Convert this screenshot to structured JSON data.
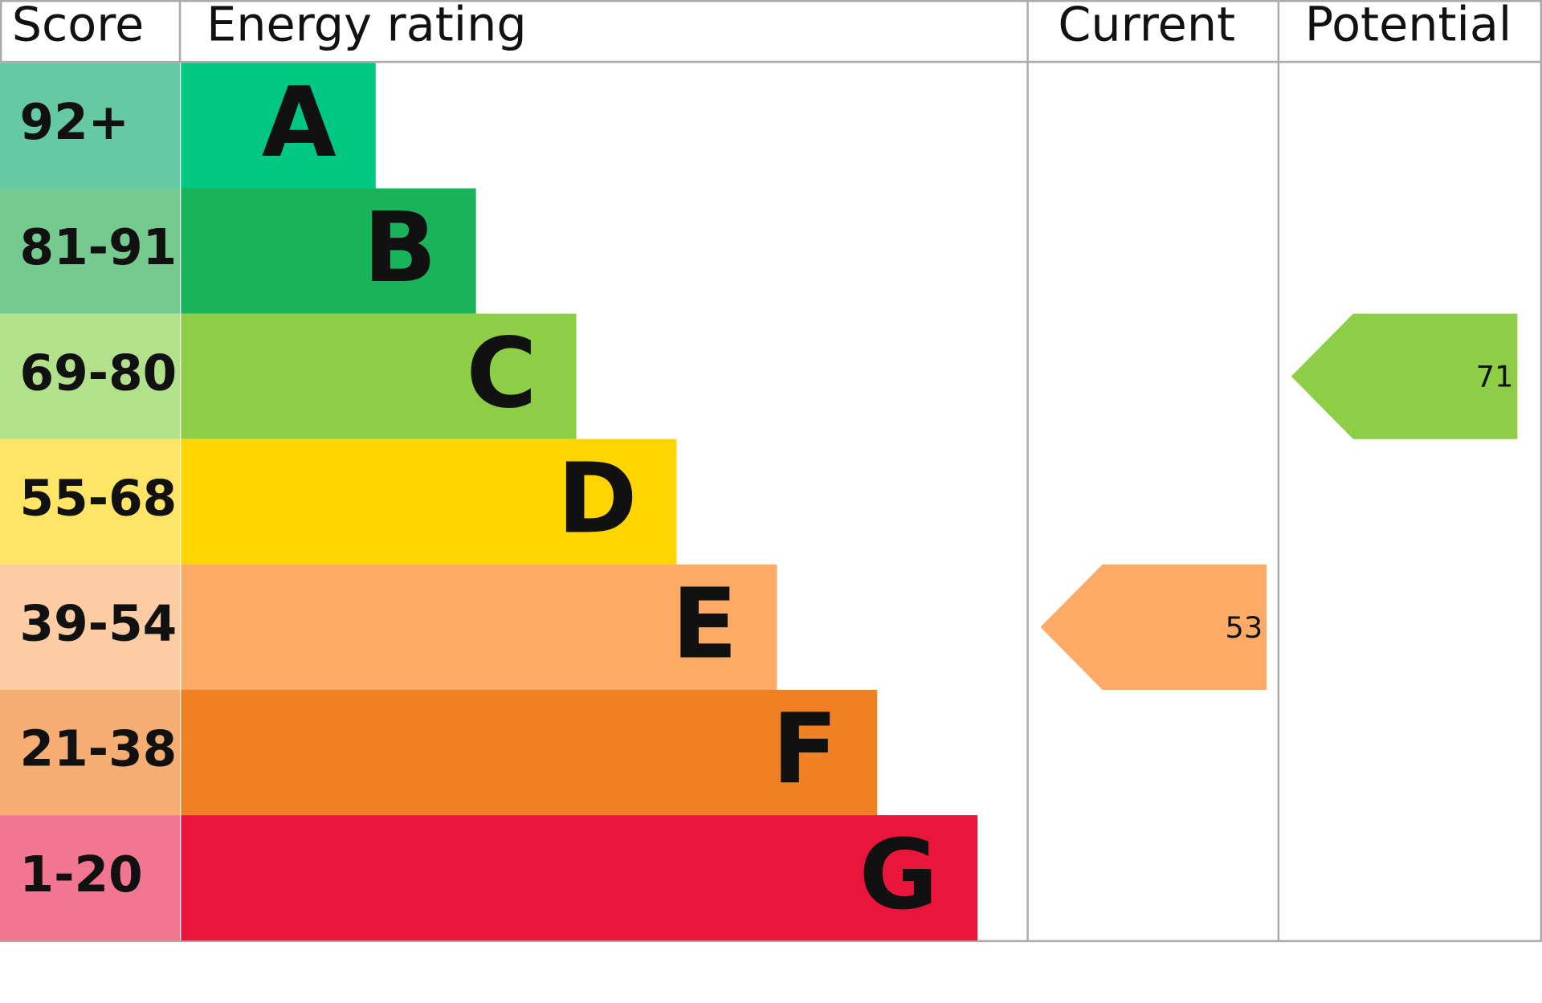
{
  "header": {
    "score": "Score",
    "rating": "Energy rating",
    "current": "Current",
    "potential": "Potential"
  },
  "bands": [
    {
      "score": "92+",
      "letter": "A",
      "color": "#00c781",
      "score_color": "#66c9a3"
    },
    {
      "score": "81-91",
      "letter": "B",
      "color": "#19b459",
      "score_color": "#74ca8f"
    },
    {
      "score": "69-80",
      "letter": "C",
      "color": "#8dce46",
      "score_color": "#b3e08a"
    },
    {
      "score": "55-68",
      "letter": "D",
      "color": "#ffd500",
      "score_color": "#ffe566"
    },
    {
      "score": "39-54",
      "letter": "E",
      "color": "#fcaa65",
      "score_color": "#fdcca3"
    },
    {
      "score": "21-38",
      "letter": "F",
      "color": "#ef8023",
      "score_color": "#f5ad72"
    },
    {
      "score": "1-20",
      "letter": "G",
      "color": "#e9153b",
      "score_color": "#f27691"
    }
  ],
  "current": 53,
  "potential": 71
}
